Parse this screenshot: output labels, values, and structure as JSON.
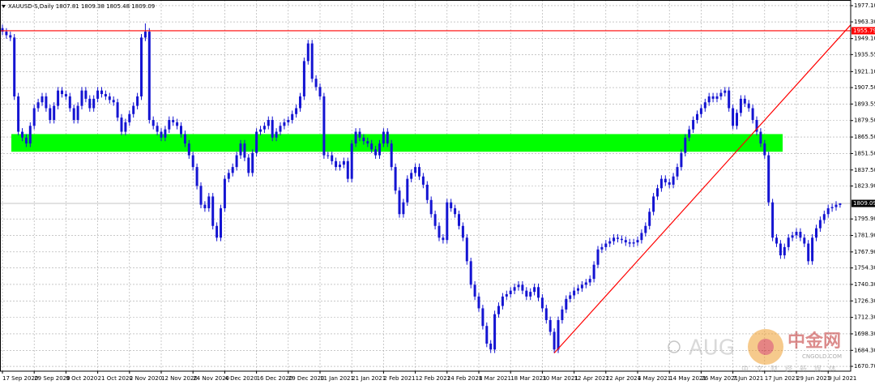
{
  "chart_data": {
    "type": "candlestick",
    "title": "XAUUSD-S,Daily  1807.81 1809.38 1805.48 1809.09",
    "color": "#1414d2",
    "categories": [
      "17 Sep 2020",
      null,
      null,
      null,
      null,
      null,
      null,
      null,
      "29 Sep 2020",
      null,
      null,
      null,
      null,
      null,
      null,
      null,
      "9 Oct 2020",
      null,
      null,
      null,
      null,
      null,
      null,
      null,
      "21 Oct 2020",
      null,
      null,
      null,
      null,
      null,
      null,
      null,
      "2 Nov 2020",
      null,
      null,
      null,
      null,
      null,
      null,
      null,
      "12 Nov 2020",
      null,
      null,
      null,
      null,
      null,
      null,
      null,
      "24 Nov 2020",
      null,
      null,
      null,
      null,
      null,
      null,
      null,
      "4 Dec 2020",
      null,
      null,
      null,
      null,
      null,
      null,
      null,
      "16 Dec 2020",
      null,
      null,
      null,
      null,
      null,
      null,
      null,
      "29 Dec 2020",
      null,
      null,
      null,
      null,
      null,
      null,
      null,
      "11 Jan 2021",
      null,
      null,
      null,
      null,
      null,
      null,
      null,
      "21 Jan 2021",
      null,
      null,
      null,
      null,
      null,
      null,
      null,
      "2 Feb 2021",
      null,
      null,
      null,
      null,
      null,
      null,
      null,
      "12 Feb 2021",
      null,
      null,
      null,
      null,
      null,
      null,
      null,
      "24 Feb 2021",
      null,
      null,
      null,
      null,
      null,
      null,
      null,
      "8 Mar 2021",
      null,
      null,
      null,
      null,
      null,
      null,
      null,
      "18 Mar 2021",
      null,
      null,
      null,
      null,
      null,
      null,
      null,
      "30 Mar 2021",
      null,
      null,
      null,
      null,
      null,
      null,
      null,
      "12 Apr 2021",
      null,
      null,
      null,
      null,
      null,
      null,
      null,
      "22 Apr 2021",
      null,
      null,
      null,
      null,
      null,
      null,
      null,
      "4 May 2021",
      null,
      null,
      null,
      null,
      null,
      null,
      null,
      "14 May 2021",
      null,
      null,
      null,
      null,
      null,
      null,
      null,
      "26 May 2021",
      null,
      null,
      null,
      null,
      null,
      null,
      null,
      "7 Jun 2021",
      null,
      null,
      null,
      null,
      null,
      null,
      null,
      "17 Jun 2021",
      null,
      null,
      null,
      null,
      null,
      null,
      null,
      "29 Jun 2021",
      null,
      null,
      null,
      null,
      null,
      null,
      null,
      "9 Jul 2021",
      null,
      null,
      null
    ],
    "open": [
      1958,
      1955,
      1952,
      1950,
      1900,
      1870,
      1865,
      1860,
      1875,
      1890,
      1895,
      1900,
      1890,
      1880,
      1892,
      1905,
      1902,
      1900,
      1890,
      1880,
      1892,
      1905,
      1898,
      1890,
      1898,
      1905,
      1902,
      1900,
      1897,
      1895,
      1882,
      1870,
      1878,
      1885,
      1892,
      1900,
      1950,
      1955,
      1880,
      1875,
      1870,
      1865,
      1872,
      1880,
      1878,
      1875,
      1868,
      1860,
      1850,
      1840,
      1824,
      1808,
      1805,
      1815,
      1790,
      1780,
      1805,
      1830,
      1835,
      1840,
      1850,
      1860,
      1848,
      1835,
      1852,
      1870,
      1872,
      1875,
      1880,
      1865,
      1870,
      1875,
      1878,
      1880,
      1885,
      1890,
      1900,
      1930,
      1945,
      1915,
      1908,
      1900,
      1850,
      1850,
      1845,
      1840,
      1842,
      1845,
      1830,
      1860,
      1870,
      1865,
      1862,
      1860,
      1855,
      1850,
      1860,
      1870,
      1860,
      1840,
      1820,
      1800,
      1810,
      1830,
      1835,
      1840,
      1832,
      1825,
      1812,
      1800,
      1790,
      1780,
      1778,
      1810,
      1805,
      1800,
      1790,
      1780,
      1760,
      1740,
      1730,
      1720,
      1705,
      1690,
      1685,
      1715,
      1722,
      1730,
      1732,
      1735,
      1738,
      1740,
      1735,
      1730,
      1734,
      1738,
      1729,
      1720,
      1710,
      1700,
      1685,
      1710,
      1719,
      1728,
      1731,
      1735,
      1737,
      1740,
      1742,
      1745,
      1757,
      1770,
      1772,
      1775,
      1777,
      1780,
      1779,
      1778,
      1776,
      1775,
      1776,
      1778,
      1784,
      1790,
      1802,
      1815,
      1822,
      1830,
      1827,
      1825,
      1832,
      1840,
      1852,
      1865,
      1872,
      1880,
      1885,
      1890,
      1895,
      1900,
      1898,
      1900,
      1903,
      1905,
      1890,
      1875,
      1886,
      1898,
      1894,
      1890,
      1880,
      1870,
      1860,
      1850,
      1810,
      1780,
      1775,
      1765,
      1772,
      1780,
      1782,
      1785,
      1780,
      1775,
      1760,
      1780,
      1788,
      1795,
      1800,
      1805,
      1806,
      1807.81
    ],
    "high": [
      1961,
      1958,
      1955,
      1953,
      1903,
      1873,
      1868,
      1878,
      1893,
      1898,
      1903,
      1903,
      1893,
      1895,
      1908,
      1908,
      1905,
      1903,
      1893,
      1895,
      1908,
      1908,
      1901,
      1901,
      1908,
      1908,
      1905,
      1903,
      1900,
      1898,
      1885,
      1881,
      1888,
      1895,
      1903,
      1953,
      1962,
      1958,
      1883,
      1878,
      1873,
      1875,
      1883,
      1883,
      1881,
      1878,
      1871,
      1863,
      1853,
      1843,
      1827,
      1811,
      1818,
      1818,
      1793,
      1808,
      1833,
      1838,
      1843,
      1853,
      1863,
      1863,
      1851,
      1855,
      1873,
      1875,
      1878,
      1883,
      1883,
      1873,
      1878,
      1881,
      1883,
      1888,
      1893,
      1903,
      1933,
      1948,
      1948,
      1918,
      1911,
      1903,
      1853,
      1853,
      1848,
      1845,
      1848,
      1848,
      1863,
      1873,
      1873,
      1868,
      1865,
      1863,
      1858,
      1863,
      1873,
      1873,
      1863,
      1843,
      1823,
      1813,
      1833,
      1838,
      1843,
      1843,
      1835,
      1828,
      1815,
      1803,
      1793,
      1783,
      1813,
      1813,
      1808,
      1803,
      1793,
      1783,
      1763,
      1743,
      1733,
      1723,
      1708,
      1693,
      1718,
      1725,
      1733,
      1735,
      1738,
      1741,
      1743,
      1743,
      1738,
      1737,
      1741,
      1741,
      1732,
      1723,
      1713,
      1703,
      1713,
      1722,
      1731,
      1734,
      1738,
      1740,
      1743,
      1745,
      1748,
      1760,
      1773,
      1775,
      1778,
      1780,
      1783,
      1783,
      1782,
      1781,
      1779,
      1779,
      1781,
      1787,
      1793,
      1805,
      1818,
      1825,
      1833,
      1833,
      1830,
      1835,
      1843,
      1855,
      1868,
      1875,
      1883,
      1888,
      1893,
      1898,
      1903,
      1903,
      1903,
      1906,
      1908,
      1908,
      1893,
      1889,
      1901,
      1901,
      1897,
      1893,
      1883,
      1873,
      1863,
      1853,
      1813,
      1783,
      1778,
      1775,
      1783,
      1785,
      1788,
      1788,
      1783,
      1778,
      1783,
      1791,
      1798,
      1803,
      1808,
      1809,
      1811,
      1809.38
    ],
    "low": [
      1952,
      1949,
      1947,
      1897,
      1867,
      1862,
      1857,
      1857,
      1872,
      1887,
      1892,
      1887,
      1877,
      1877,
      1889,
      1899,
      1897,
      1887,
      1877,
      1877,
      1889,
      1895,
      1887,
      1887,
      1895,
      1899,
      1897,
      1894,
      1892,
      1879,
      1867,
      1867,
      1875,
      1882,
      1889,
      1897,
      1947,
      1877,
      1872,
      1867,
      1862,
      1862,
      1869,
      1875,
      1872,
      1865,
      1857,
      1847,
      1837,
      1821,
      1805,
      1802,
      1802,
      1787,
      1777,
      1777,
      1802,
      1827,
      1832,
      1837,
      1847,
      1845,
      1832,
      1832,
      1849,
      1867,
      1869,
      1872,
      1862,
      1862,
      1867,
      1872,
      1875,
      1877,
      1882,
      1887,
      1897,
      1927,
      1912,
      1905,
      1897,
      1847,
      1847,
      1842,
      1837,
      1837,
      1839,
      1827,
      1827,
      1857,
      1862,
      1859,
      1857,
      1852,
      1847,
      1847,
      1857,
      1857,
      1837,
      1817,
      1797,
      1797,
      1807,
      1827,
      1832,
      1829,
      1822,
      1809,
      1797,
      1787,
      1777,
      1775,
      1775,
      1802,
      1797,
      1787,
      1777,
      1757,
      1737,
      1727,
      1717,
      1702,
      1687,
      1682,
      1682,
      1712,
      1719,
      1727,
      1729,
      1732,
      1735,
      1732,
      1727,
      1727,
      1731,
      1726,
      1717,
      1707,
      1697,
      1682,
      1682,
      1707,
      1716,
      1725,
      1728,
      1732,
      1734,
      1737,
      1739,
      1742,
      1754,
      1767,
      1769,
      1772,
      1774,
      1776,
      1775,
      1773,
      1772,
      1772,
      1773,
      1775,
      1781,
      1787,
      1799,
      1812,
      1819,
      1824,
      1822,
      1822,
      1829,
      1837,
      1849,
      1862,
      1869,
      1877,
      1882,
      1887,
      1892,
      1895,
      1895,
      1897,
      1900,
      1887,
      1872,
      1872,
      1883,
      1891,
      1887,
      1877,
      1867,
      1857,
      1847,
      1807,
      1777,
      1772,
      1762,
      1762,
      1769,
      1777,
      1779,
      1777,
      1772,
      1757,
      1757,
      1777,
      1785,
      1792,
      1797,
      1802,
      1803,
      1805.48
    ],
    "close": [
      1955,
      1952,
      1950,
      1900,
      1870,
      1865,
      1860,
      1875,
      1890,
      1895,
      1900,
      1890,
      1880,
      1892,
      1905,
      1902,
      1900,
      1890,
      1880,
      1892,
      1905,
      1898,
      1890,
      1898,
      1905,
      1902,
      1900,
      1897,
      1895,
      1882,
      1870,
      1878,
      1885,
      1892,
      1900,
      1950,
      1955,
      1880,
      1875,
      1870,
      1865,
      1872,
      1880,
      1878,
      1875,
      1868,
      1860,
      1850,
      1840,
      1824,
      1808,
      1805,
      1815,
      1790,
      1780,
      1805,
      1830,
      1835,
      1840,
      1850,
      1860,
      1848,
      1835,
      1852,
      1870,
      1872,
      1875,
      1880,
      1865,
      1870,
      1875,
      1878,
      1880,
      1885,
      1890,
      1900,
      1930,
      1945,
      1915,
      1908,
      1900,
      1850,
      1850,
      1845,
      1840,
      1842,
      1845,
      1830,
      1860,
      1870,
      1865,
      1862,
      1860,
      1855,
      1850,
      1860,
      1870,
      1860,
      1840,
      1820,
      1800,
      1810,
      1830,
      1835,
      1840,
      1832,
      1825,
      1812,
      1800,
      1790,
      1780,
      1778,
      1810,
      1805,
      1800,
      1790,
      1780,
      1760,
      1740,
      1730,
      1720,
      1705,
      1690,
      1685,
      1715,
      1722,
      1730,
      1732,
      1735,
      1738,
      1740,
      1735,
      1730,
      1734,
      1738,
      1729,
      1720,
      1710,
      1700,
      1685,
      1710,
      1719,
      1728,
      1731,
      1735,
      1737,
      1740,
      1742,
      1745,
      1757,
      1770,
      1772,
      1775,
      1777,
      1780,
      1779,
      1778,
      1776,
      1775,
      1776,
      1778,
      1784,
      1790,
      1802,
      1815,
      1822,
      1830,
      1827,
      1825,
      1832,
      1840,
      1852,
      1865,
      1872,
      1880,
      1885,
      1890,
      1895,
      1900,
      1898,
      1900,
      1903,
      1905,
      1890,
      1875,
      1886,
      1898,
      1894,
      1890,
      1880,
      1870,
      1860,
      1850,
      1810,
      1780,
      1775,
      1765,
      1772,
      1780,
      1782,
      1785,
      1780,
      1775,
      1760,
      1780,
      1788,
      1795,
      1800,
      1805,
      1806,
      1808,
      1809.09
    ],
    "ylim": [
      1666.6,
      1981.9
    ],
    "yticks": [
      {
        "value": 1977.1,
        "label": "1977.10"
      },
      {
        "value": 1963.3,
        "label": "1963.30"
      },
      {
        "value": 1949.1,
        "label": "1949.10"
      },
      1935.55,
      {
        "value": 1921.1,
        "label": "1921.10"
      },
      {
        "value": 1907.5,
        "label": "1907.50"
      },
      1893.55,
      {
        "value": 1879.5,
        "label": "1879.50"
      },
      {
        "value": 1865.5,
        "label": "1865.50"
      },
      {
        "value": 1851.5,
        "label": "1851.50"
      },
      {
        "value": 1837.5,
        "label": "1837.50"
      },
      {
        "value": 1823.9,
        "label": "1823.90"
      },
      {
        "value": 1795.9,
        "label": "1795.90"
      },
      {
        "value": 1781.9,
        "label": "1781.90"
      },
      {
        "value": 1767.9,
        "label": "1767.90"
      },
      {
        "value": 1754.3,
        "label": "1754.30"
      },
      {
        "value": 1740.3,
        "label": "1740.30"
      },
      {
        "value": 1726.3,
        "label": "1726.30"
      },
      {
        "value": 1712.3,
        "label": "1712.30"
      },
      {
        "value": 1698.3,
        "label": "1698.30"
      },
      {
        "value": 1684.3,
        "label": "1684.30"
      },
      {
        "value": 1670.7,
        "label": "1670.70"
      }
    ],
    "grid": true,
    "hline": {
      "value": 1955.79,
      "color": "#ff0000"
    },
    "zone": {
      "range": [
        1853,
        1868
      ],
      "color": "#00ff00"
    },
    "trendline": {
      "x": [
        139,
        214
      ],
      "y": [
        1682,
        1962
      ],
      "color": "#ff0000"
    },
    "watermark": {
      "brand": "AUG",
      "site": "中金网",
      "domain": "CNGOLD.COM",
      "slogan": "中文财经新媒体"
    }
  }
}
